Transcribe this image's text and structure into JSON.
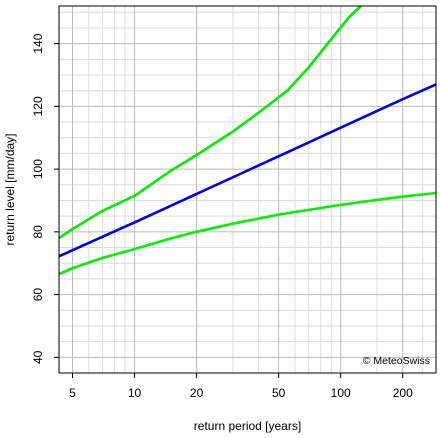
{
  "chart_data": {
    "type": "line",
    "xscale": "log",
    "xlabel": "return period [years]",
    "ylabel": "return level [mm/day]",
    "xlim": [
      4.3,
      290
    ],
    "ylim": [
      35,
      152
    ],
    "x_ticks": [
      5,
      10,
      20,
      50,
      100,
      200
    ],
    "x_tick_labels": [
      "5",
      "10",
      "20",
      "50",
      "100",
      "200"
    ],
    "x_minor_grid": [
      6,
      7,
      8,
      9,
      30,
      40,
      60,
      70,
      80,
      90,
      150,
      250
    ],
    "y_ticks": [
      40,
      60,
      80,
      100,
      120,
      140
    ],
    "y_tick_labels": [
      "40",
      "60",
      "80",
      "100",
      "120",
      "140"
    ],
    "y_minor_step": 5,
    "grid": true,
    "credit": "© MeteoSwiss",
    "series": [
      {
        "role": "upper-bound",
        "color": "#00ee00",
        "x": [
          4.3,
          5,
          7,
          10,
          15,
          20,
          30,
          40,
          55,
          70,
          90,
          110,
          125
        ],
        "y": [
          78.0,
          80.9,
          86.7,
          91.5,
          99.5,
          104.5,
          112.0,
          118.0,
          125.0,
          132.5,
          141.5,
          148.5,
          152.0
        ]
      },
      {
        "role": "estimate",
        "color": "#0000dd",
        "x": [
          4.3,
          10,
          20,
          50,
          100,
          200,
          290
        ],
        "y": [
          72.2,
          83.0,
          92.1,
          104.1,
          113.2,
          122.3,
          127.0
        ]
      },
      {
        "role": "lower-bound",
        "color": "#00ee00",
        "x": [
          4.3,
          5,
          7,
          10,
          15,
          20,
          30,
          50,
          70,
          100,
          150,
          200,
          290
        ],
        "y": [
          66.5,
          68.4,
          71.7,
          74.5,
          77.9,
          80.0,
          82.6,
          85.5,
          87.0,
          88.6,
          90.2,
          91.2,
          92.4
        ]
      }
    ]
  }
}
